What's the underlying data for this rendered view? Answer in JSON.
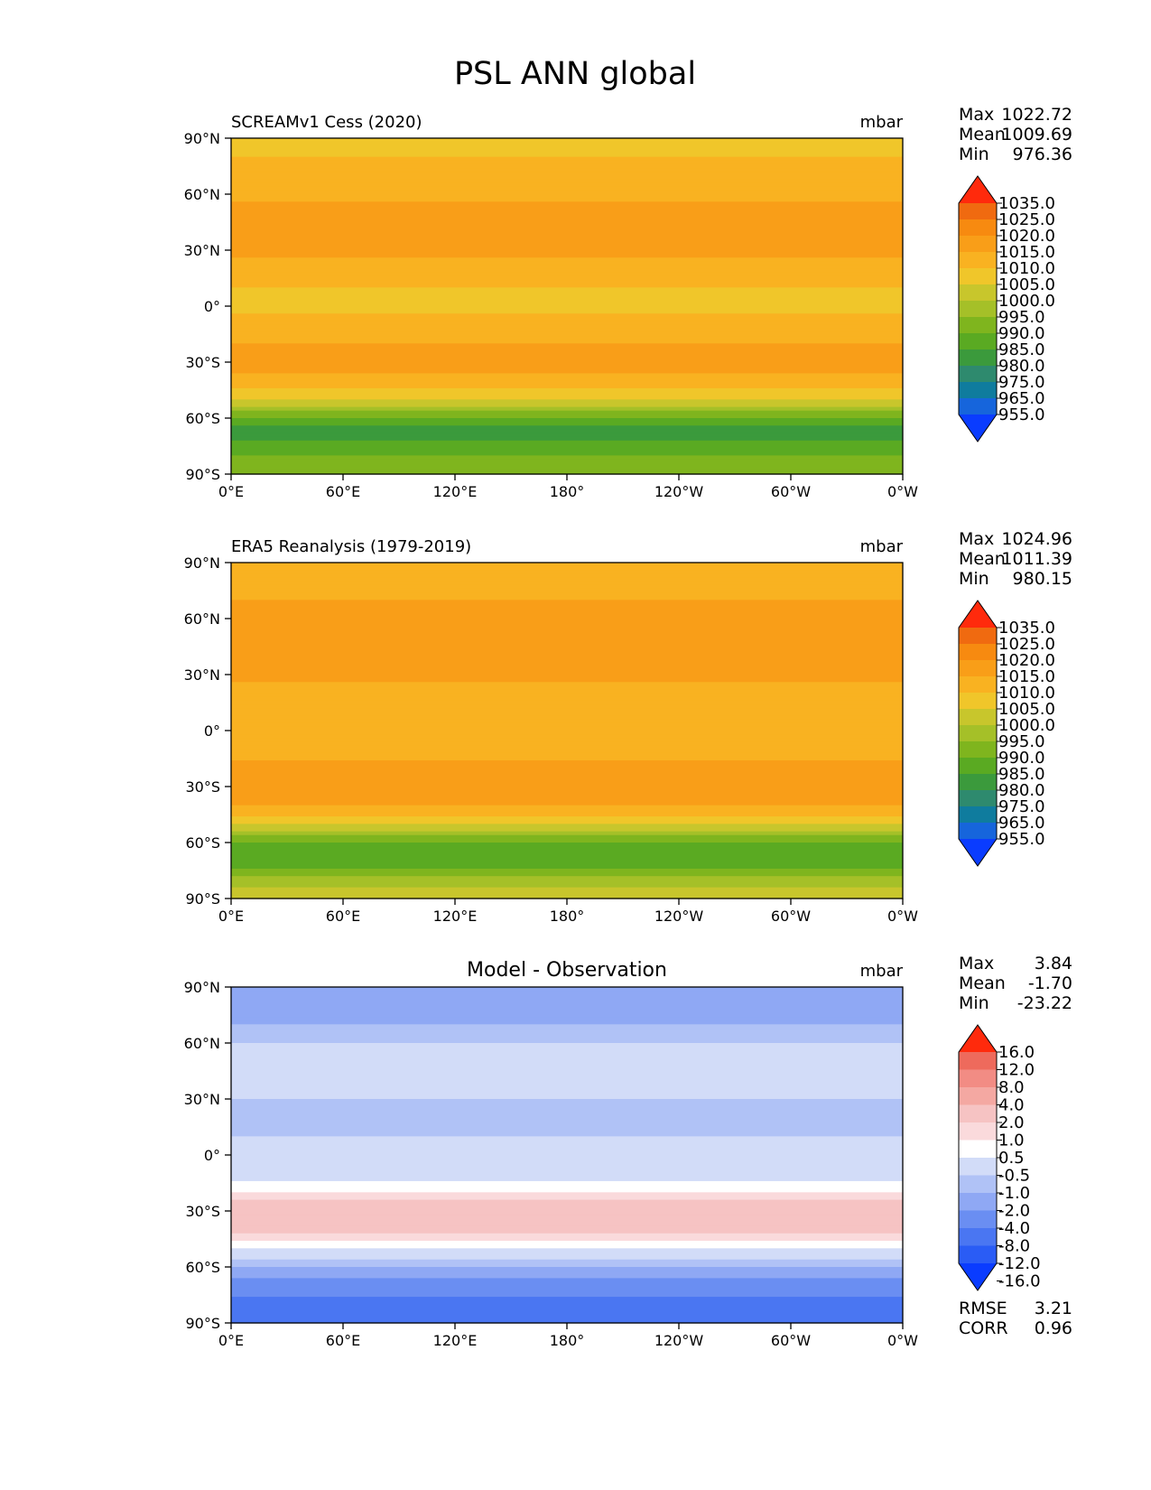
{
  "figure_title": "PSL ANN global",
  "x_ticks": [
    "0°E",
    "60°E",
    "120°E",
    "180°",
    "120°W",
    "60°W",
    "0°W"
  ],
  "y_ticks": [
    "90°N",
    "60°N",
    "30°N",
    "0°",
    "30°S",
    "60°S",
    "90°S"
  ],
  "colors": {
    "abs_levels": [
      "#0a3cff",
      "#1665dc",
      "#0f7c9e",
      "#2e8a6e",
      "#3b9a3c",
      "#5aaa22",
      "#7fb51e",
      "#a5c028",
      "#c8c62c",
      "#f0c62a",
      "#f9b221",
      "#f99e18",
      "#f78a10",
      "#f06a10",
      "#ff2a0c"
    ],
    "diff_levels": [
      "#0a3cff",
      "#2a5cf5",
      "#4a76f2",
      "#6a8ef2",
      "#8fa8f4",
      "#b0c2f6",
      "#d2dcf8",
      "#ffffff",
      "#fadadc",
      "#f6c3c3",
      "#f4a8a2",
      "#f28c84",
      "#ee6a5c",
      "#ff2a0c"
    ]
  },
  "chart_data": [
    {
      "type": "heatmap",
      "title": "SCREAMv1 Cess (2020)",
      "units": "mbar",
      "stats": [
        {
          "label": "Max",
          "value": "1022.72"
        },
        {
          "label": "Mean",
          "value": "1009.69"
        },
        {
          "label": "Min",
          "value": "976.36"
        }
      ],
      "colorbar_labels": [
        "1035.0",
        "1025.0",
        "1020.0",
        "1015.0",
        "1010.0",
        "1005.0",
        "1000.0",
        "995.0",
        "990.0",
        "985.0",
        "980.0",
        "975.0",
        "965.0",
        "955.0"
      ],
      "zonal_profile": {
        "lat": [
          90,
          80,
          70,
          60,
          50,
          40,
          30,
          20,
          10,
          0,
          -10,
          -20,
          -30,
          -40,
          -50,
          -55,
          -60,
          -65,
          -70,
          -80,
          -90
        ],
        "value": [
          1006,
          1010,
          1012,
          1014,
          1016,
          1017,
          1016,
          1013,
          1010,
          1009,
          1011,
          1015,
          1017,
          1014,
          1005,
          997,
          990,
          984,
          983,
          990,
          995
        ]
      }
    },
    {
      "type": "heatmap",
      "title": "ERA5 Reanalysis (1979-2019)",
      "units": "mbar",
      "stats": [
        {
          "label": "Max",
          "value": "1024.96"
        },
        {
          "label": "Mean",
          "value": "1011.39"
        },
        {
          "label": "Min",
          "value": "980.15"
        }
      ],
      "colorbar_labels": [
        "1035.0",
        "1025.0",
        "1020.0",
        "1015.0",
        "1010.0",
        "1005.0",
        "1000.0",
        "995.0",
        "990.0",
        "985.0",
        "980.0",
        "975.0",
        "965.0",
        "955.0"
      ],
      "zonal_profile": {
        "lat": [
          90,
          80,
          70,
          60,
          50,
          40,
          30,
          20,
          10,
          0,
          -10,
          -20,
          -30,
          -40,
          -50,
          -55,
          -60,
          -65,
          -70,
          -80,
          -90
        ],
        "value": [
          1013,
          1014,
          1015,
          1016,
          1017,
          1017,
          1016,
          1013,
          1011,
          1011,
          1013,
          1016,
          1018,
          1015,
          1006,
          997,
          989,
          985,
          987,
          996,
          1004
        ]
      }
    },
    {
      "type": "heatmap",
      "title": "Model - Observation",
      "units": "mbar",
      "stats": [
        {
          "label": "Max",
          "value": "3.84"
        },
        {
          "label": "Mean",
          "value": "-1.70"
        },
        {
          "label": "Min",
          "value": "-23.22"
        }
      ],
      "colorbar_labels": [
        "16.0",
        "12.0",
        "8.0",
        "4.0",
        "2.0",
        "1.0",
        "0.5",
        "-0.5",
        "-1.0",
        "-2.0",
        "-4.0",
        "-8.0",
        "-12.0",
        "-16.0"
      ],
      "zonal_profile": {
        "lat": [
          90,
          80,
          70,
          60,
          50,
          40,
          30,
          20,
          10,
          0,
          -10,
          -20,
          -30,
          -40,
          -50,
          -55,
          -60,
          -65,
          -70,
          -80,
          -90
        ],
        "value": [
          -4,
          -3,
          -2,
          -1,
          -1,
          -0.5,
          -1,
          -1.5,
          -1,
          -1,
          -1,
          0.5,
          1.5,
          1.5,
          -0.5,
          -1,
          -2,
          -4,
          -6,
          -9,
          -12
        ]
      },
      "metrics": [
        {
          "label": "RMSE",
          "value": "3.21"
        },
        {
          "label": "CORR",
          "value": "0.96"
        }
      ]
    }
  ]
}
